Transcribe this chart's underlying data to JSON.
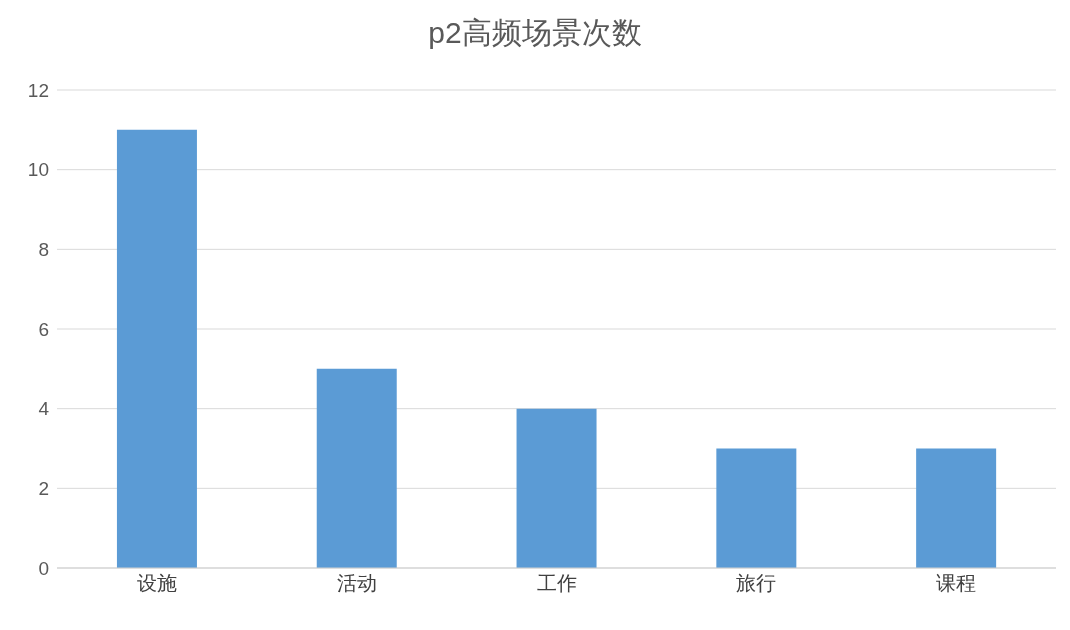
{
  "chart_data": {
    "type": "bar",
    "title": "p2高频场景次数",
    "categories": [
      "设施",
      "活动",
      "工作",
      "旅行",
      "课程"
    ],
    "values": [
      11,
      5,
      4,
      3,
      3
    ],
    "color": "#5b9bd5",
    "ylim": [
      0,
      12
    ],
    "yticks": [
      0,
      2,
      4,
      6,
      8,
      10,
      12
    ],
    "grid": "y"
  }
}
